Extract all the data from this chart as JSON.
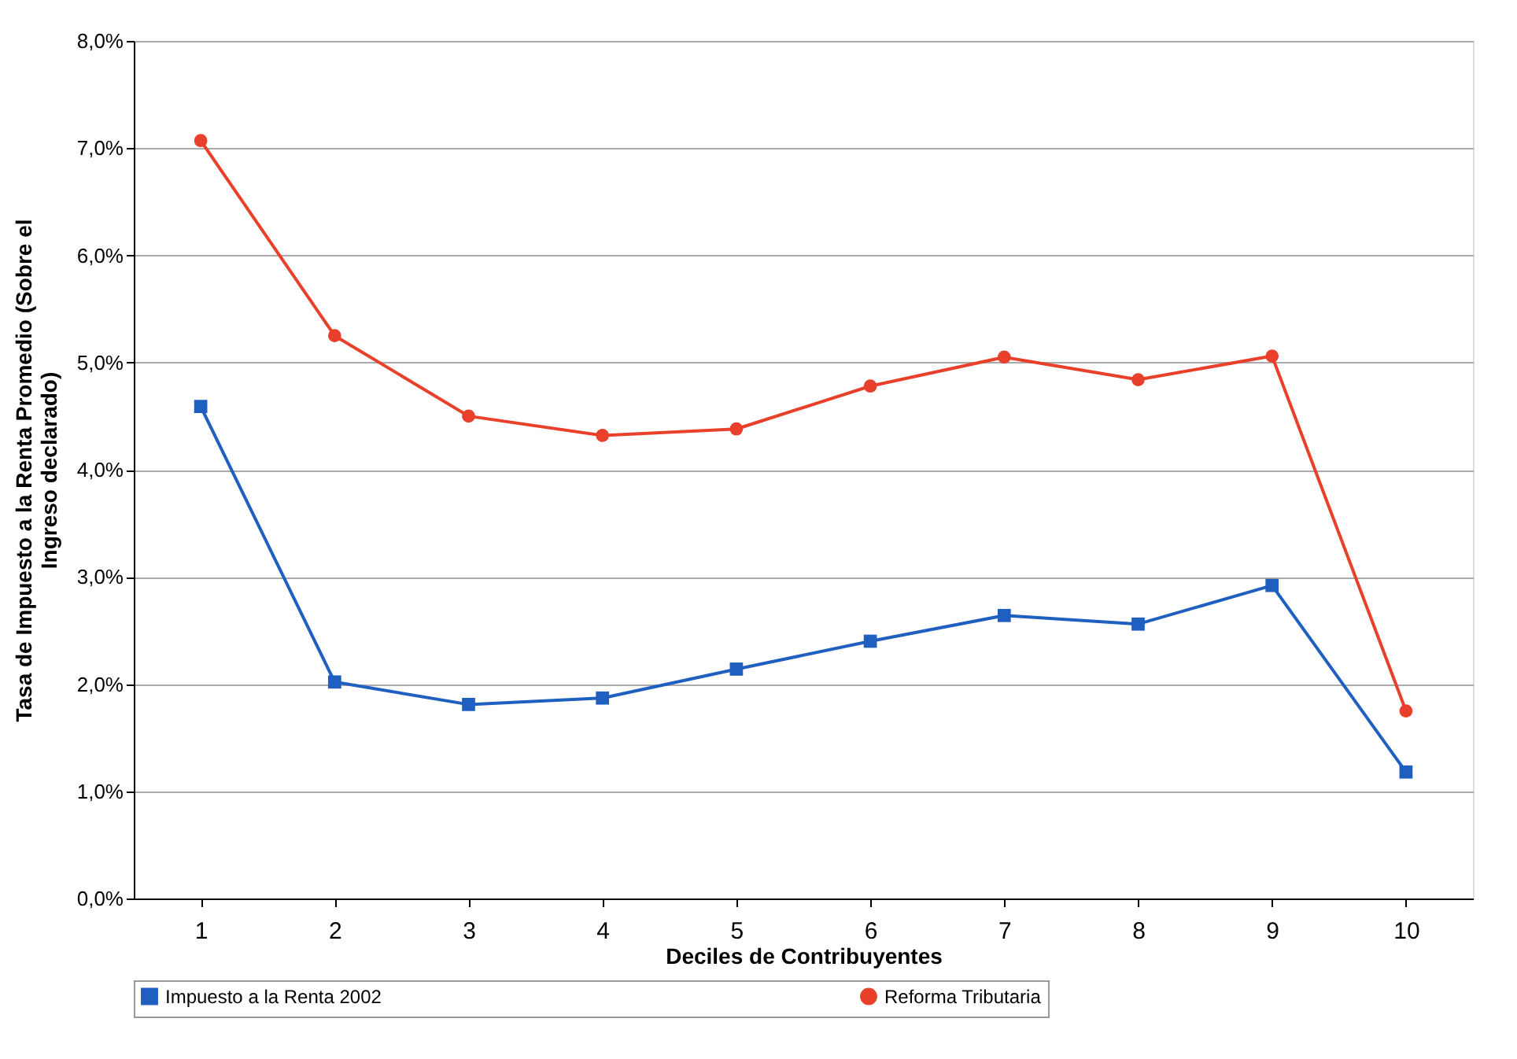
{
  "chart_data": {
    "type": "line",
    "xlabel": "Deciles de Contribuyentes",
    "ylabel": "Tasa de Impuesto a la Renta Promedio (Sobre el Ingreso declarado)",
    "categories": [
      "1",
      "2",
      "3",
      "4",
      "5",
      "6",
      "7",
      "8",
      "9",
      "10"
    ],
    "series": [
      {
        "name": "Impuesto a la Renta 2002",
        "color": "#1f5fc0",
        "marker": "square",
        "values": [
          4.59,
          2.02,
          1.81,
          1.87,
          2.14,
          2.4,
          2.64,
          2.56,
          2.92,
          1.18
        ]
      },
      {
        "name": "Reforma Tributaria",
        "color": "#e8402a",
        "marker": "circle",
        "values": [
          7.07,
          5.25,
          4.5,
          4.32,
          4.38,
          4.78,
          5.05,
          4.84,
          5.06,
          1.75
        ]
      }
    ],
    "ylim": [
      0,
      8
    ],
    "yticks": [
      {
        "value": 0,
        "label": "0,0%"
      },
      {
        "value": 1,
        "label": "1,0%"
      },
      {
        "value": 2,
        "label": "2,0%"
      },
      {
        "value": 3,
        "label": "3,0%"
      },
      {
        "value": 4,
        "label": "4,0%"
      },
      {
        "value": 5,
        "label": "5,0%"
      },
      {
        "value": 6,
        "label": "6,0%"
      },
      {
        "value": 7,
        "label": "7,0%"
      },
      {
        "value": 8,
        "label": "8,0%"
      }
    ],
    "grid": "y",
    "legend": "bottom",
    "line_style": "solid"
  }
}
